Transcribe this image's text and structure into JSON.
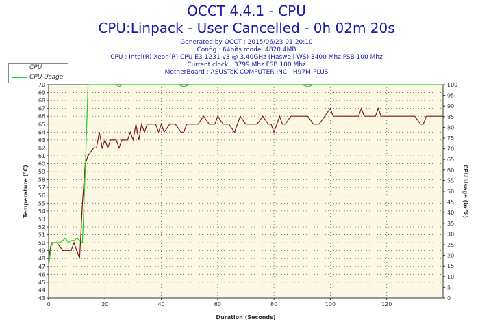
{
  "header": {
    "title": "OCCT 4.4.1 - CPU",
    "subtitle": "CPU:Linpack - User Cancelled - 0h 02m 20s",
    "info_lines": [
      "Generated by OCCT : 2015/06/23 01:20:10",
      "Config : 64bits mode, 4820.4MB",
      "CPU : Intel(R) Xeon(R) CPU E3-1231 v3 @ 3.40GHz (Haswell-WS) 3400 Mhz FSB 100 Mhz",
      "Current clock : 3799 Mhz FSB 100 Mhz",
      "MotherBoard : ASUSTeK COMPUTER INC.: H97M-PLUS"
    ]
  },
  "chart_data": {
    "type": "line",
    "xlabel": "Duration (Seconds)",
    "ylabel": "Temperature (°C)",
    "y2label": "CPU Usage (in %)",
    "xlim": [
      0,
      140
    ],
    "ylim": [
      43,
      70
    ],
    "y2lim": [
      0,
      100
    ],
    "x_ticks": [
      0,
      20,
      40,
      60,
      80,
      100,
      120
    ],
    "y_ticks": [
      43,
      44,
      45,
      46,
      47,
      48,
      49,
      50,
      51,
      52,
      53,
      54,
      55,
      56,
      57,
      58,
      59,
      60,
      61,
      62,
      63,
      64,
      65,
      66,
      67,
      68,
      69,
      70
    ],
    "y_tick_labels": [
      "43",
      "44",
      "45",
      "46",
      "47",
      "48",
      "49",
      "50",
      "51",
      "52",
      "53",
      "54",
      "55",
      "56",
      "57",
      "58",
      "59",
      "60",
      "61",
      "62",
      "63",
      "64",
      "65",
      "66",
      "67",
      "68",
      "69",
      "70"
    ],
    "y2_ticks": [
      0,
      5,
      10,
      15,
      20,
      25,
      30,
      35,
      40,
      45,
      50,
      55,
      60,
      65,
      70,
      75,
      80,
      85,
      90,
      95,
      100
    ],
    "grid": true,
    "legend": "top-left",
    "background": "#fdf8e4",
    "series": [
      {
        "name": "CPU",
        "axis": "left",
        "color": "#7a1a1a",
        "x": [
          0,
          1,
          2,
          3,
          5,
          6,
          8,
          9,
          10,
          11,
          12,
          13,
          14,
          16,
          17,
          18,
          19,
          20,
          21,
          22,
          23,
          24,
          25,
          26,
          28,
          29,
          30,
          31,
          32,
          33,
          34,
          35,
          36,
          37,
          38,
          39,
          40,
          41,
          43,
          45,
          47,
          48,
          49,
          50,
          51,
          53,
          55,
          57,
          58,
          59,
          60,
          62,
          64,
          66,
          67,
          68,
          70,
          72,
          74,
          76,
          78,
          79,
          80,
          81,
          82,
          83,
          84,
          86,
          88,
          90,
          92,
          94,
          96,
          98,
          100,
          101,
          102,
          104,
          106,
          108,
          110,
          111,
          112,
          113,
          114,
          116,
          117,
          118,
          120,
          122,
          124,
          126,
          128,
          130,
          132,
          133,
          134,
          136,
          138,
          140
        ],
        "y": [
          48,
          50,
          50,
          50,
          49,
          49,
          49,
          50,
          49,
          48,
          55,
          60,
          61,
          62,
          62,
          64,
          62,
          63,
          62,
          63,
          63,
          63,
          62,
          63,
          63,
          64,
          63,
          65,
          63,
          65,
          64,
          65,
          65,
          65,
          65,
          64,
          65,
          64,
          65,
          65,
          64,
          64,
          65,
          65,
          65,
          65,
          66,
          65,
          65,
          65,
          66,
          65,
          65,
          64,
          65,
          66,
          65,
          65,
          65,
          66,
          65,
          65,
          64,
          65,
          66,
          65,
          65,
          66,
          66,
          66,
          66,
          65,
          65,
          66,
          67,
          66,
          66,
          66,
          66,
          66,
          66,
          67,
          66,
          66,
          66,
          66,
          67,
          66,
          66,
          66,
          66,
          66,
          66,
          66,
          65,
          65,
          66,
          66,
          66,
          66
        ]
      },
      {
        "name": "CPU Usage",
        "axis": "right",
        "color": "#22cc22",
        "x": [
          0,
          1,
          2,
          3,
          4,
          5,
          6,
          7,
          8,
          9,
          10,
          11,
          12,
          13,
          14,
          20,
          24,
          25,
          26,
          46,
          48,
          50,
          90,
          92,
          94,
          100,
          130,
          140
        ],
        "y": [
          15,
          25,
          26,
          26,
          26,
          27,
          28,
          26,
          27,
          27,
          28,
          27,
          26,
          60,
          100,
          100,
          100,
          99,
          100,
          100,
          99,
          100,
          100,
          99,
          100,
          100,
          100,
          100
        ]
      }
    ]
  }
}
